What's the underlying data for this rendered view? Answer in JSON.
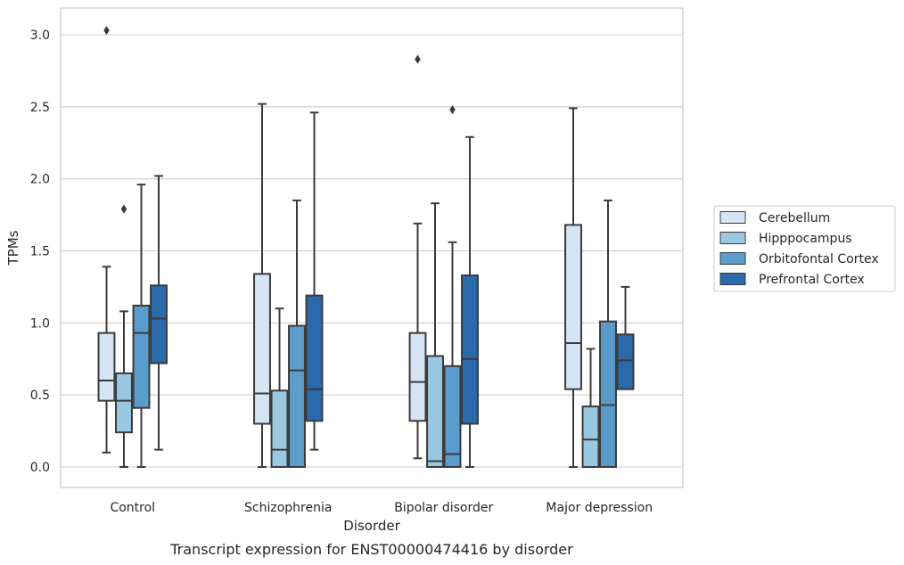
{
  "chart_data": {
    "type": "box",
    "title": "",
    "caption": "Transcript expression for ENST00000474416 by disorder",
    "xlabel": "Disorder",
    "ylabel": "TPMs",
    "ylim": [
      -0.15,
      3.2
    ],
    "yticks": [
      0.0,
      0.5,
      1.0,
      1.5,
      2.0,
      2.5,
      3.0
    ],
    "ytick_labels": [
      "0.0",
      "0.5",
      "1.0",
      "1.5",
      "2.0",
      "2.5",
      "3.0"
    ],
    "grid": "horizontal",
    "legend_position": "right",
    "categories": [
      "Control",
      "Schizophrenia",
      "Bipolar disorder",
      "Major depression"
    ],
    "series": [
      {
        "name": "Cerebellum",
        "color": "#d6e5f4",
        "boxes": [
          {
            "whislo": 0.1,
            "q1": 0.46,
            "med": 0.6,
            "q3": 0.93,
            "whishi": 1.39,
            "fliers": [
              3.03
            ]
          },
          {
            "whislo": 0.0,
            "q1": 0.3,
            "med": 0.51,
            "q3": 1.34,
            "whishi": 2.52,
            "fliers": []
          },
          {
            "whislo": 0.06,
            "q1": 0.32,
            "med": 0.59,
            "q3": 0.93,
            "whishi": 1.69,
            "fliers": [
              2.83
            ]
          },
          {
            "whislo": 0.0,
            "q1": 0.54,
            "med": 0.86,
            "q3": 1.68,
            "whishi": 2.49,
            "fliers": []
          }
        ]
      },
      {
        "name": "Hipppocampus",
        "color": "#9ac8e0",
        "boxes": [
          {
            "whislo": 0.0,
            "q1": 0.24,
            "med": 0.46,
            "q3": 0.65,
            "whishi": 1.08,
            "fliers": [
              1.79
            ]
          },
          {
            "whislo": 0.0,
            "q1": 0.0,
            "med": 0.12,
            "q3": 0.53,
            "whishi": 1.1,
            "fliers": []
          },
          {
            "whislo": 0.0,
            "q1": 0.0,
            "med": 0.04,
            "q3": 0.77,
            "whishi": 1.83,
            "fliers": []
          },
          {
            "whislo": 0.0,
            "q1": 0.0,
            "med": 0.19,
            "q3": 0.42,
            "whishi": 0.82,
            "fliers": []
          }
        ]
      },
      {
        "name": "Orbitofontal Cortex",
        "color": "#5a9ccc",
        "boxes": [
          {
            "whislo": 0.0,
            "q1": 0.41,
            "med": 0.93,
            "q3": 1.12,
            "whishi": 1.96,
            "fliers": []
          },
          {
            "whislo": 0.0,
            "q1": 0.0,
            "med": 0.67,
            "q3": 0.98,
            "whishi": 1.85,
            "fliers": []
          },
          {
            "whislo": 0.0,
            "q1": 0.0,
            "med": 0.09,
            "q3": 0.7,
            "whishi": 1.56,
            "fliers": [
              2.48
            ]
          },
          {
            "whislo": 0.0,
            "q1": 0.0,
            "med": 0.43,
            "q3": 1.01,
            "whishi": 1.85,
            "fliers": []
          }
        ]
      },
      {
        "name": "Prefrontal Cortex",
        "color": "#2b6aaa",
        "boxes": [
          {
            "whislo": 0.12,
            "q1": 0.72,
            "med": 1.03,
            "q3": 1.26,
            "whishi": 2.02,
            "fliers": []
          },
          {
            "whislo": 0.12,
            "q1": 0.32,
            "med": 0.54,
            "q3": 1.19,
            "whishi": 2.46,
            "fliers": []
          },
          {
            "whislo": 0.0,
            "q1": 0.3,
            "med": 0.75,
            "q3": 1.33,
            "whishi": 2.29,
            "fliers": []
          },
          {
            "whislo": null,
            "q1": 0.54,
            "med": 0.74,
            "q3": 0.92,
            "whishi": 1.25,
            "fliers": []
          }
        ]
      }
    ]
  }
}
